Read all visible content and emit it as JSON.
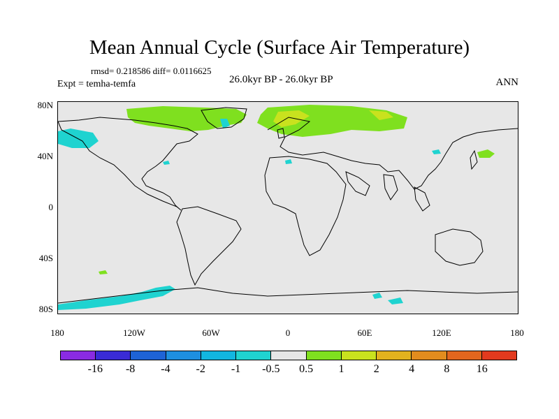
{
  "title": "Mean Annual Cycle (Surface Air Temperature)",
  "stats": "rmsd= 0.218586 diff= 0.0116625",
  "experiment": "Expt = temha-temfa",
  "period": "26.0kyr BP - 26.0kyr BP",
  "season": "ANN",
  "lat_labels": [
    "80N",
    "40N",
    "0",
    "40S",
    "80S"
  ],
  "lon_labels": [
    "180",
    "120W",
    "60W",
    "0",
    "60E",
    "120E",
    "180"
  ],
  "colorbar": {
    "colors": [
      "#8a2be2",
      "#3a2bd6",
      "#1e63d6",
      "#1e8fe0",
      "#12b6e0",
      "#1fd3d0",
      "#e6e6e6",
      "#7fe01f",
      "#c9e21e",
      "#e2b21e",
      "#e28c1e",
      "#e2661e",
      "#e23a1e"
    ],
    "labels": [
      "-16",
      "-8",
      "-4",
      "-2",
      "-1",
      "-0.5",
      "0.5",
      "1",
      "2",
      "4",
      "8",
      "16"
    ]
  },
  "colors": {
    "background": "#e7e7e7",
    "anomaly_green": "#7fe01f",
    "anomaly_yellow": "#c9e21e",
    "anomaly_cyan": "#1fd3d0"
  }
}
